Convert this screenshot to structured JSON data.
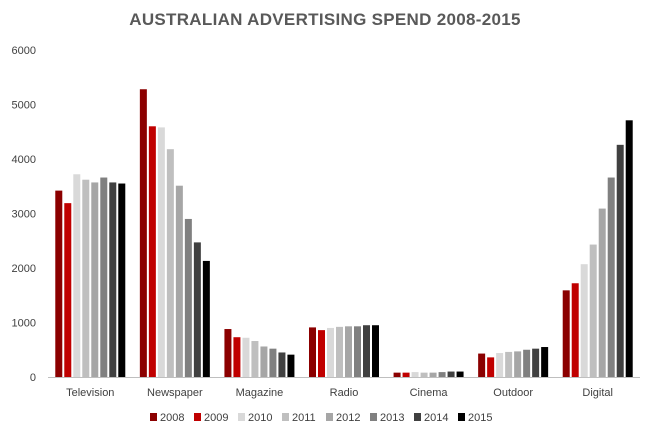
{
  "chart_data": {
    "type": "bar",
    "title": "AUSTRALIAN ADVERTISING SPEND 2008-2015",
    "xlabel": "",
    "ylabel": "",
    "ylim": [
      0,
      6000
    ],
    "yticks": [
      0,
      1000,
      2000,
      3000,
      4000,
      5000,
      6000
    ],
    "grid": false,
    "legend_position": "bottom",
    "categories": [
      "Television",
      "Newspaper",
      "Magazine",
      "Radio",
      "Cinema",
      "Outdoor",
      "Digital"
    ],
    "series": [
      {
        "name": "2008",
        "color": "#8b0000",
        "values": [
          3420,
          5280,
          880,
          910,
          80,
          430,
          1590
        ]
      },
      {
        "name": "2009",
        "color": "#c00000",
        "values": [
          3190,
          4600,
          730,
          860,
          80,
          360,
          1720
        ]
      },
      {
        "name": "2010",
        "color": "#d9d9d9",
        "values": [
          3720,
          4580,
          720,
          900,
          90,
          440,
          2070
        ]
      },
      {
        "name": "2011",
        "color": "#bfbfbf",
        "values": [
          3620,
          4180,
          660,
          920,
          80,
          460,
          2430
        ]
      },
      {
        "name": "2012",
        "color": "#a6a6a6",
        "values": [
          3570,
          3510,
          560,
          930,
          80,
          470,
          3090
        ]
      },
      {
        "name": "2013",
        "color": "#808080",
        "values": [
          3660,
          2900,
          520,
          930,
          90,
          500,
          3660
        ]
      },
      {
        "name": "2014",
        "color": "#404040",
        "values": [
          3570,
          2470,
          450,
          950,
          100,
          520,
          4260
        ]
      },
      {
        "name": "2015",
        "color": "#000000",
        "values": [
          3550,
          2130,
          410,
          950,
          100,
          550,
          4710
        ]
      }
    ]
  }
}
